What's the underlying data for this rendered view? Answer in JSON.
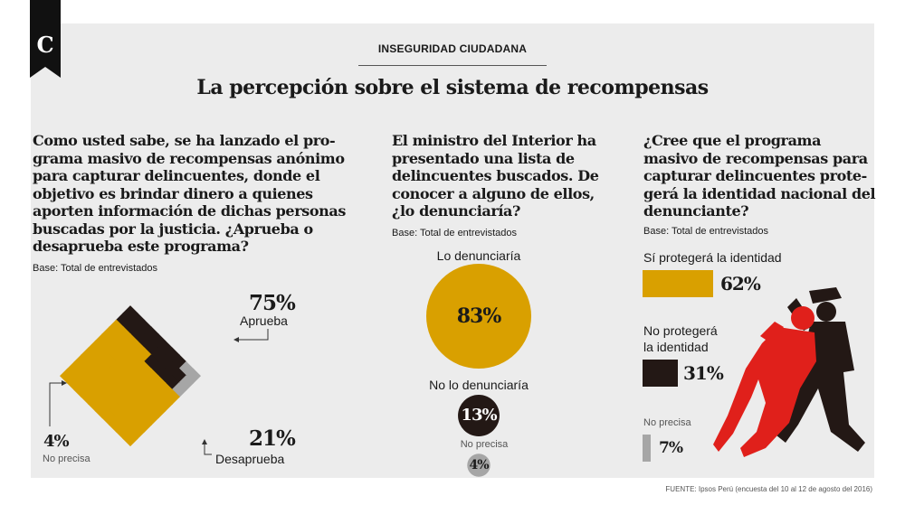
{
  "header": {
    "section": "INSEGURIDAD CIUDADANA",
    "title": "La percepción sobre el sistema de recompensas",
    "logo_letter": "C"
  },
  "colors": {
    "yes": "#d9a000",
    "no": "#231815",
    "unsure": "#a6a6a6",
    "panel": "#ececec",
    "illustration_red": "#e0201b"
  },
  "source": "FUENTE: Ipsos Perú (encuesta del 10 al 12 de agosto del 2016)",
  "charts": [
    {
      "question_lines": [
        "Como usted sabe, se ha lanzado el pro-",
        "grama masivo de recompensas anónimo",
        "para capturar delincuentes, donde el",
        "objetivo es brindar dinero a quienes",
        "aporten información de dichas personas",
        "buscadas por la justicia. ¿Aprueba o",
        "desaprueba este programa?"
      ],
      "base": "Base: Total de entrevistados",
      "items": [
        {
          "value": "75%",
          "label": "Aprueba"
        },
        {
          "value": "21%",
          "label": "Desaprueba"
        },
        {
          "value": "4%",
          "label": "No precisa"
        }
      ]
    },
    {
      "question_lines": [
        "El ministro del Interior ha",
        "presentado una lista de",
        "delincuentes buscados. De",
        "conocer a alguno de ellos,",
        "¿lo denunciaría?"
      ],
      "base": "Base: Total de entrevistados",
      "items": [
        {
          "value": "83%",
          "label": "Lo denunciaría"
        },
        {
          "value": "13%",
          "label": "No lo denunciaría"
        },
        {
          "value": "4%",
          "label": "No precisa"
        }
      ]
    },
    {
      "question_lines": [
        "¿Cree que el programa",
        "masivo de recompensas para",
        "capturar delincuentes prote-",
        "gerá la identidad nacional del",
        "denunciante?"
      ],
      "base": "Base: Total de entrevistados",
      "items": [
        {
          "value": "62%",
          "label_lines": [
            "Sí protegerá la identidad"
          ]
        },
        {
          "value": "31%",
          "label_lines": [
            "No protegerá",
            "la identidad"
          ]
        },
        {
          "value": "7%",
          "label_lines": [
            "No precisa"
          ]
        }
      ]
    }
  ],
  "chart_data": [
    {
      "type": "waffle",
      "grid": "10x10 rotated 45°",
      "categories": [
        "Aprueba",
        "Desaprueba",
        "No precisa"
      ],
      "values": [
        75,
        21,
        4
      ],
      "unit": "%"
    },
    {
      "type": "bubble",
      "categories": [
        "Lo denunciaría",
        "No lo denunciaría",
        "No precisa"
      ],
      "values": [
        83,
        13,
        4
      ],
      "unit": "%"
    },
    {
      "type": "bar",
      "orientation": "horizontal",
      "categories": [
        "Sí protegerá la identidad",
        "No protegerá la identidad",
        "No precisa"
      ],
      "values": [
        62,
        31,
        7
      ],
      "unit": "%"
    }
  ]
}
